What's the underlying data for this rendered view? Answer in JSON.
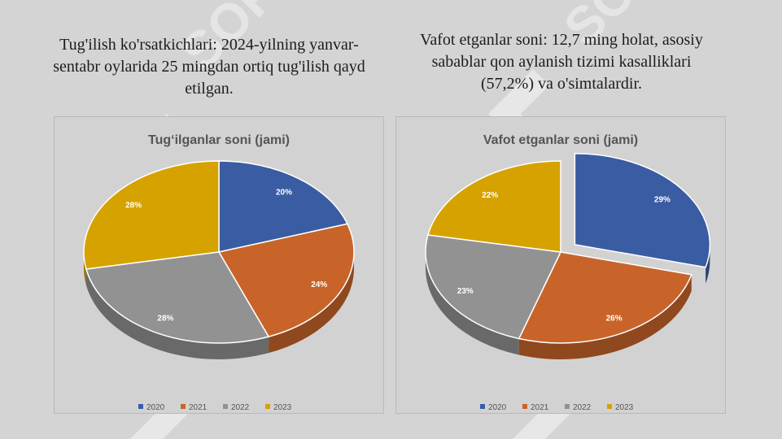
{
  "captions": {
    "left": "Tug'ilish ko'rsatkichlari: 2024-yilning yanvar-sentabr oylarida 25 mingdan ortiq tug'ilish qayd etilgan.",
    "right": "Vafot etganlar soni: 12,7 ming holat, asosiy sabablar qon aylanish tizimi kasalliklari (57,2%) va o'simtalardir."
  },
  "watermark_text": "SOFF",
  "chart_data": [
    {
      "type": "pie",
      "title": "Tug‘ilganlar soni (jami)",
      "categories": [
        "2020",
        "2021",
        "2022",
        "2023"
      ],
      "values": [
        20,
        24,
        28,
        28
      ],
      "labels": [
        "20%",
        "24%",
        "28%",
        "28%"
      ],
      "colors": [
        "#3a5ca3",
        "#c8642a",
        "#929292",
        "#d6a200"
      ],
      "explode": [
        0,
        0,
        0,
        0
      ],
      "legend_position": "bottom"
    },
    {
      "type": "pie",
      "title": "Vafot etganlar soni (jami)",
      "categories": [
        "2020",
        "2021",
        "2022",
        "2023"
      ],
      "values": [
        29,
        26,
        23,
        22
      ],
      "labels": [
        "29%",
        "26%",
        "23%",
        "22%"
      ],
      "colors": [
        "#3a5ca3",
        "#c8642a",
        "#929292",
        "#d6a200"
      ],
      "explode": [
        1,
        0,
        0,
        0
      ],
      "legend_position": "bottom"
    }
  ]
}
